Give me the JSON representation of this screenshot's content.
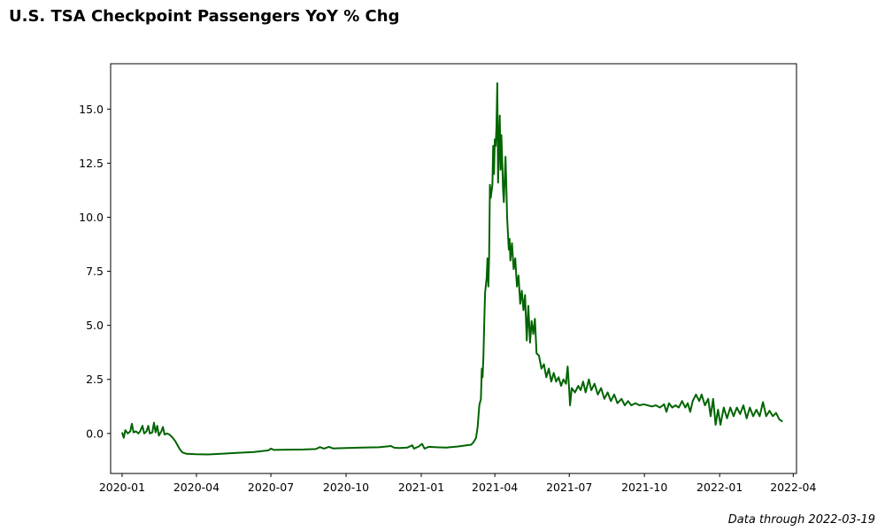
{
  "title": "U.S. TSA Checkpoint Passengers YoY % Chg",
  "footnote": "Data through 2022-03-19",
  "chart_data": {
    "type": "line",
    "title": "U.S. TSA Checkpoint Passengers YoY % Chg",
    "xlabel": "",
    "ylabel": "",
    "xlim": [
      "2019-12-18",
      "2022-04-05"
    ],
    "ylim": [
      -1.85,
      17.1
    ],
    "x_ticks": [
      "2020-01",
      "2020-04",
      "2020-07",
      "2020-10",
      "2021-01",
      "2021-04",
      "2021-07",
      "2021-10",
      "2022-01",
      "2022-04"
    ],
    "y_ticks": [
      "0.0",
      "2.5",
      "5.0",
      "7.5",
      "10.0",
      "12.5",
      "15.0"
    ],
    "grid": false,
    "legend": "none",
    "series": [
      {
        "color": "#006400",
        "points": [
          [
            "2020-01-01",
            0.05
          ],
          [
            "2020-01-03",
            -0.2
          ],
          [
            "2020-01-05",
            0.15
          ],
          [
            "2020-01-08",
            0.0
          ],
          [
            "2020-01-11",
            0.1
          ],
          [
            "2020-01-13",
            0.45
          ],
          [
            "2020-01-15",
            0.05
          ],
          [
            "2020-01-18",
            0.1
          ],
          [
            "2020-01-21",
            0.0
          ],
          [
            "2020-01-23",
            0.1
          ],
          [
            "2020-01-26",
            0.35
          ],
          [
            "2020-01-28",
            0.0
          ],
          [
            "2020-01-31",
            0.1
          ],
          [
            "2020-02-02",
            0.35
          ],
          [
            "2020-02-04",
            0.0
          ],
          [
            "2020-02-07",
            0.05
          ],
          [
            "2020-02-09",
            0.5
          ],
          [
            "2020-02-11",
            0.05
          ],
          [
            "2020-02-13",
            0.35
          ],
          [
            "2020-02-15",
            -0.1
          ],
          [
            "2020-02-18",
            0.1
          ],
          [
            "2020-02-20",
            0.3
          ],
          [
            "2020-02-22",
            -0.05
          ],
          [
            "2020-02-25",
            0.0
          ],
          [
            "2020-02-28",
            -0.05
          ],
          [
            "2020-03-03",
            -0.2
          ],
          [
            "2020-03-06",
            -0.35
          ],
          [
            "2020-03-09",
            -0.55
          ],
          [
            "2020-03-12",
            -0.75
          ],
          [
            "2020-03-15",
            -0.88
          ],
          [
            "2020-03-20",
            -0.94
          ],
          [
            "2020-03-31",
            -0.96
          ],
          [
            "2020-04-15",
            -0.97
          ],
          [
            "2020-05-01",
            -0.94
          ],
          [
            "2020-05-20",
            -0.9
          ],
          [
            "2020-06-10",
            -0.86
          ],
          [
            "2020-06-28",
            -0.78
          ],
          [
            "2020-07-01",
            -0.7
          ],
          [
            "2020-07-05",
            -0.76
          ],
          [
            "2020-07-20",
            -0.75
          ],
          [
            "2020-08-10",
            -0.74
          ],
          [
            "2020-08-25",
            -0.72
          ],
          [
            "2020-08-30",
            -0.63
          ],
          [
            "2020-09-04",
            -0.7
          ],
          [
            "2020-09-10",
            -0.62
          ],
          [
            "2020-09-15",
            -0.69
          ],
          [
            "2020-10-01",
            -0.67
          ],
          [
            "2020-10-20",
            -0.65
          ],
          [
            "2020-11-10",
            -0.64
          ],
          [
            "2020-11-25",
            -0.58
          ],
          [
            "2020-11-29",
            -0.66
          ],
          [
            "2020-12-05",
            -0.67
          ],
          [
            "2020-12-15",
            -0.65
          ],
          [
            "2020-12-21",
            -0.55
          ],
          [
            "2020-12-23",
            -0.7
          ],
          [
            "2020-12-29",
            -0.6
          ],
          [
            "2021-01-02",
            -0.48
          ],
          [
            "2021-01-05",
            -0.7
          ],
          [
            "2021-01-10",
            -0.62
          ],
          [
            "2021-01-20",
            -0.64
          ],
          [
            "2021-02-01",
            -0.65
          ],
          [
            "2021-02-15",
            -0.6
          ],
          [
            "2021-02-25",
            -0.55
          ],
          [
            "2021-03-03",
            -0.52
          ],
          [
            "2021-03-06",
            -0.4
          ],
          [
            "2021-03-09",
            -0.2
          ],
          [
            "2021-03-11",
            0.3
          ],
          [
            "2021-03-13",
            1.3
          ],
          [
            "2021-03-15",
            1.6
          ],
          [
            "2021-03-16",
            3.0
          ],
          [
            "2021-03-17",
            2.6
          ],
          [
            "2021-03-18",
            3.5
          ],
          [
            "2021-03-19",
            5.0
          ],
          [
            "2021-03-20",
            6.5
          ],
          [
            "2021-03-22",
            7.2
          ],
          [
            "2021-03-23",
            8.1
          ],
          [
            "2021-03-24",
            6.8
          ],
          [
            "2021-03-25",
            8.2
          ],
          [
            "2021-03-26",
            11.5
          ],
          [
            "2021-03-27",
            10.9
          ],
          [
            "2021-03-29",
            11.5
          ],
          [
            "2021-03-30",
            13.3
          ],
          [
            "2021-03-31",
            12.0
          ],
          [
            "2021-04-01",
            13.6
          ],
          [
            "2021-04-02",
            13.3
          ],
          [
            "2021-04-03",
            14.2
          ],
          [
            "2021-04-04",
            16.2
          ],
          [
            "2021-04-05",
            11.6
          ],
          [
            "2021-04-06",
            13.5
          ],
          [
            "2021-04-07",
            14.7
          ],
          [
            "2021-04-08",
            12.2
          ],
          [
            "2021-04-09",
            13.8
          ],
          [
            "2021-04-10",
            12.6
          ],
          [
            "2021-04-11",
            11.3
          ],
          [
            "2021-04-12",
            10.7
          ],
          [
            "2021-04-14",
            12.8
          ],
          [
            "2021-04-15",
            11.5
          ],
          [
            "2021-04-16",
            10.0
          ],
          [
            "2021-04-18",
            8.5
          ],
          [
            "2021-04-19",
            9.0
          ],
          [
            "2021-04-20",
            8.0
          ],
          [
            "2021-04-22",
            8.8
          ],
          [
            "2021-04-24",
            7.6
          ],
          [
            "2021-04-26",
            8.1
          ],
          [
            "2021-04-28",
            6.8
          ],
          [
            "2021-04-30",
            7.3
          ],
          [
            "2021-05-02",
            6.0
          ],
          [
            "2021-05-04",
            6.6
          ],
          [
            "2021-05-06",
            5.7
          ],
          [
            "2021-05-08",
            6.4
          ],
          [
            "2021-05-10",
            4.3
          ],
          [
            "2021-05-12",
            5.9
          ],
          [
            "2021-05-14",
            4.2
          ],
          [
            "2021-05-16",
            5.2
          ],
          [
            "2021-05-18",
            4.6
          ],
          [
            "2021-05-20",
            5.3
          ],
          [
            "2021-05-22",
            3.7
          ],
          [
            "2021-05-25",
            3.6
          ],
          [
            "2021-05-28",
            3.0
          ],
          [
            "2021-05-31",
            3.2
          ],
          [
            "2021-06-03",
            2.6
          ],
          [
            "2021-06-06",
            3.0
          ],
          [
            "2021-06-09",
            2.4
          ],
          [
            "2021-06-12",
            2.8
          ],
          [
            "2021-06-15",
            2.4
          ],
          [
            "2021-06-18",
            2.6
          ],
          [
            "2021-06-21",
            2.2
          ],
          [
            "2021-06-24",
            2.5
          ],
          [
            "2021-06-27",
            2.3
          ],
          [
            "2021-06-29",
            3.1
          ],
          [
            "2021-07-01",
            2.0
          ],
          [
            "2021-07-02",
            1.3
          ],
          [
            "2021-07-04",
            2.1
          ],
          [
            "2021-07-08",
            1.9
          ],
          [
            "2021-07-12",
            2.2
          ],
          [
            "2021-07-15",
            2.0
          ],
          [
            "2021-07-18",
            2.4
          ],
          [
            "2021-07-21",
            1.9
          ],
          [
            "2021-07-25",
            2.5
          ],
          [
            "2021-07-28",
            2.0
          ],
          [
            "2021-08-01",
            2.3
          ],
          [
            "2021-08-05",
            1.8
          ],
          [
            "2021-08-09",
            2.1
          ],
          [
            "2021-08-13",
            1.6
          ],
          [
            "2021-08-17",
            1.9
          ],
          [
            "2021-08-21",
            1.5
          ],
          [
            "2021-08-25",
            1.8
          ],
          [
            "2021-08-29",
            1.4
          ],
          [
            "2021-09-03",
            1.6
          ],
          [
            "2021-09-07",
            1.3
          ],
          [
            "2021-09-11",
            1.5
          ],
          [
            "2021-09-15",
            1.3
          ],
          [
            "2021-09-20",
            1.4
          ],
          [
            "2021-09-25",
            1.3
          ],
          [
            "2021-09-30",
            1.35
          ],
          [
            "2021-10-05",
            1.3
          ],
          [
            "2021-10-10",
            1.25
          ],
          [
            "2021-10-15",
            1.3
          ],
          [
            "2021-10-20",
            1.2
          ],
          [
            "2021-10-25",
            1.35
          ],
          [
            "2021-10-28",
            1.0
          ],
          [
            "2021-10-31",
            1.4
          ],
          [
            "2021-11-04",
            1.2
          ],
          [
            "2021-11-08",
            1.3
          ],
          [
            "2021-11-12",
            1.2
          ],
          [
            "2021-11-16",
            1.5
          ],
          [
            "2021-11-20",
            1.2
          ],
          [
            "2021-11-23",
            1.4
          ],
          [
            "2021-11-26",
            1.0
          ],
          [
            "2021-11-29",
            1.5
          ],
          [
            "2021-12-03",
            1.8
          ],
          [
            "2021-12-07",
            1.5
          ],
          [
            "2021-12-10",
            1.8
          ],
          [
            "2021-12-14",
            1.3
          ],
          [
            "2021-12-18",
            1.6
          ],
          [
            "2021-12-21",
            0.8
          ],
          [
            "2021-12-24",
            1.6
          ],
          [
            "2021-12-27",
            0.4
          ],
          [
            "2021-12-30",
            1.1
          ],
          [
            "2022-01-02",
            0.4
          ],
          [
            "2022-01-06",
            1.2
          ],
          [
            "2022-01-10",
            0.7
          ],
          [
            "2022-01-14",
            1.2
          ],
          [
            "2022-01-18",
            0.8
          ],
          [
            "2022-01-22",
            1.2
          ],
          [
            "2022-01-26",
            0.9
          ],
          [
            "2022-01-30",
            1.3
          ],
          [
            "2022-02-03",
            0.7
          ],
          [
            "2022-02-07",
            1.2
          ],
          [
            "2022-02-11",
            0.8
          ],
          [
            "2022-02-15",
            1.1
          ],
          [
            "2022-02-19",
            0.8
          ],
          [
            "2022-02-23",
            1.45
          ],
          [
            "2022-02-27",
            0.8
          ],
          [
            "2022-03-03",
            1.05
          ],
          [
            "2022-03-07",
            0.8
          ],
          [
            "2022-03-11",
            0.95
          ],
          [
            "2022-03-15",
            0.65
          ],
          [
            "2022-03-19",
            0.55
          ]
        ]
      }
    ]
  }
}
